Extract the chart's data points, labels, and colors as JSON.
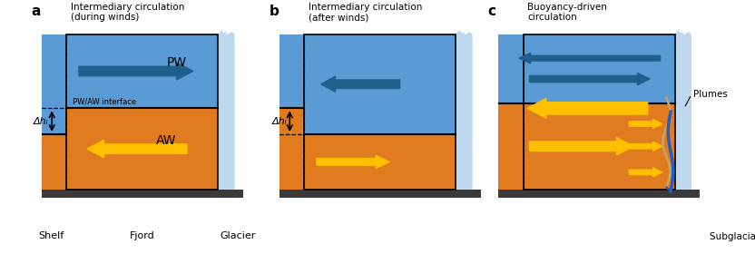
{
  "fig_width": 8.32,
  "fig_height": 2.8,
  "dpi": 100,
  "bg_color": "#ffffff",
  "pw_color": "#5b9bd5",
  "aw_color": "#e07b20",
  "glacier_color": "#bdd7ee",
  "seafloor_color": "#3a3a3a",
  "dark_blue": "#1e5f8c",
  "yellow": "#ffc000",
  "panel_titles": [
    "Intermediary circulation\n(during winds)",
    "Intermediary circulation\n(after winds)",
    "Buoyancy-driven\ncirculation"
  ],
  "panel_labels": [
    "a",
    "b",
    "c"
  ],
  "pw_label": "PW",
  "aw_label": "AW",
  "interface_label": "PW/AW interface",
  "delta_h_label": "Δhᵢ",
  "plumes_label": "Plumes",
  "subglacial_label": "Subglacial runoff",
  "shelf_label": "Shelf",
  "fjord_label": "Fjord",
  "glacier_label": "Glacier"
}
